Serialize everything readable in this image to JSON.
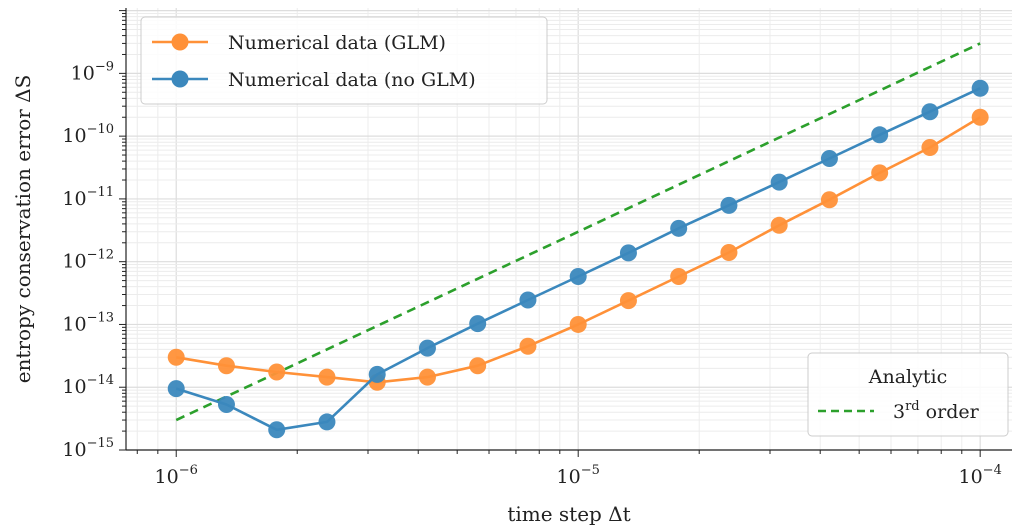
{
  "chart_data": {
    "type": "line",
    "title": "",
    "xlabel": "time step Δt",
    "ylabel": "entropy conservation error ΔS",
    "xscale": "log",
    "yscale": "log",
    "xlim": [
      7.5e-07,
      0.00012
    ],
    "ylim": [
      1e-15,
      1.1e-08
    ],
    "grid": true,
    "x_tick_labels": [
      {
        "base": "10",
        "exp": "−6",
        "value": 1e-06
      },
      {
        "base": "10",
        "exp": "−5",
        "value": 1e-05
      },
      {
        "base": "10",
        "exp": "−4",
        "value": 0.0001
      }
    ],
    "y_tick_labels": [
      {
        "base": "10",
        "exp": "−15",
        "value": 1e-15
      },
      {
        "base": "10",
        "exp": "−14",
        "value": 1e-14
      },
      {
        "base": "10",
        "exp": "−13",
        "value": 1e-13
      },
      {
        "base": "10",
        "exp": "−12",
        "value": 1e-12
      },
      {
        "base": "10",
        "exp": "−11",
        "value": 1e-11
      },
      {
        "base": "10",
        "exp": "−10",
        "value": 1e-10
      },
      {
        "base": "10",
        "exp": "−9",
        "value": 1e-09
      }
    ],
    "x": [
      1e-06,
      1.3335e-06,
      1.7783e-06,
      2.3714e-06,
      3.1623e-06,
      4.217e-06,
      5.6234e-06,
      7.4989e-06,
      1e-05,
      1.3335e-05,
      1.7783e-05,
      2.3714e-05,
      3.1623e-05,
      4.217e-05,
      5.6234e-05,
      7.4989e-05,
      0.0001
    ],
    "series": [
      {
        "name": "Numerical data (GLM)",
        "color": "#ff9138",
        "style": "line-marker",
        "values": [
          3e-14,
          2.2e-14,
          1.75e-14,
          1.45e-14,
          1.2e-14,
          1.45e-14,
          2.2e-14,
          4.5e-14,
          1e-13,
          2.4e-13,
          5.8e-13,
          1.4e-12,
          3.8e-12,
          9.7e-12,
          2.6e-11,
          6.6e-11,
          2e-10
        ]
      },
      {
        "name": "Numerical data (no GLM)",
        "color": "#3b88bd",
        "style": "line-marker",
        "values": [
          9.5e-15,
          5.3e-15,
          2.1e-15,
          2.8e-15,
          1.6e-14,
          4.2e-14,
          1.03e-13,
          2.45e-13,
          5.8e-13,
          1.38e-12,
          3.4e-12,
          7.9e-12,
          1.85e-11,
          4.4e-11,
          1.05e-10,
          2.45e-10,
          5.8e-10
        ]
      }
    ],
    "reference_line": {
      "label_base": "3",
      "label_sup": "rd",
      "label_suffix": " order",
      "color": "#2ca02c",
      "style": "dashed",
      "x": [
        1e-06,
        0.0001
      ],
      "y": [
        3e-15,
        3e-09
      ]
    },
    "legend_main": {
      "placement": "top-left",
      "entries": [
        "Numerical data (GLM)",
        "Numerical data (no GLM)"
      ]
    },
    "legend_ref": {
      "placement": "bottom-right",
      "title": "Analytic"
    }
  }
}
